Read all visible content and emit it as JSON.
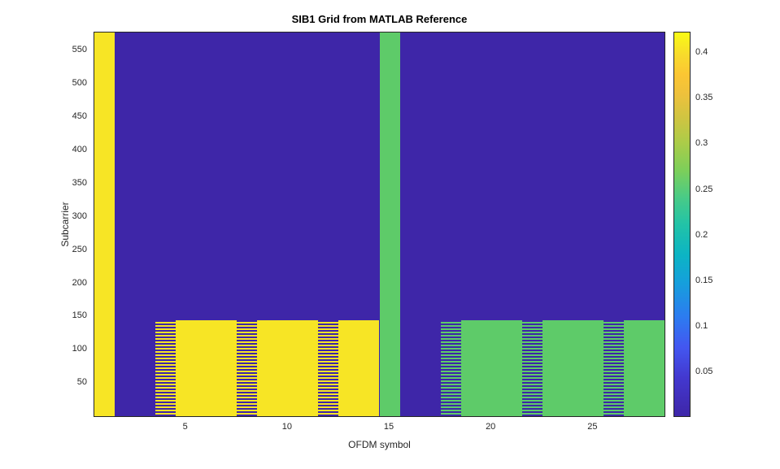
{
  "chart_data": {
    "type": "heatmap",
    "title": "SIB1 Grid from MATLAB Reference",
    "xlabel": "OFDM symbol",
    "ylabel": "Subcarrier",
    "colormap": "parula",
    "xlim": [
      0.5,
      28.5
    ],
    "ylim": [
      0.5,
      576.5
    ],
    "x_ticks": [
      5,
      10,
      15,
      20,
      25
    ],
    "y_ticks": [
      50,
      100,
      150,
      200,
      250,
      300,
      350,
      400,
      450,
      500,
      550
    ],
    "grid": false,
    "colors": {
      "background": "#3e26a8",
      "yellow": "#f7e525",
      "green": "#5ecb69"
    },
    "background_value": 0,
    "colorbar": {
      "vmin": 0,
      "vmax": 0.4225,
      "ticks": [
        0.05,
        0.1,
        0.15,
        0.2,
        0.25,
        0.3,
        0.35,
        0.4
      ],
      "position": "right",
      "gradient_stops": [
        {
          "pos": 0.0,
          "color": "#3e26a8"
        },
        {
          "pos": 0.1,
          "color": "#4338cf"
        },
        {
          "pos": 0.18,
          "color": "#4357f0"
        },
        {
          "pos": 0.26,
          "color": "#2c7cf0"
        },
        {
          "pos": 0.35,
          "color": "#15a0db"
        },
        {
          "pos": 0.42,
          "color": "#0cb4c4"
        },
        {
          "pos": 0.5,
          "color": "#22c3a7"
        },
        {
          "pos": 0.57,
          "color": "#49cb86"
        },
        {
          "pos": 0.64,
          "color": "#7ccf5a"
        },
        {
          "pos": 0.71,
          "color": "#aacc49"
        },
        {
          "pos": 0.78,
          "color": "#d1c441"
        },
        {
          "pos": 0.84,
          "color": "#eec13c"
        },
        {
          "pos": 0.89,
          "color": "#fbc633"
        },
        {
          "pos": 0.94,
          "color": "#f8da2c"
        },
        {
          "pos": 1.0,
          "color": "#f9fb15"
        }
      ]
    },
    "regions": [
      {
        "name": "yellow-column-symbol-1",
        "x0": 0.5,
        "x1": 1.5,
        "y0": 0.5,
        "y1": 576.5,
        "fill": "yellow",
        "pattern": "solid",
        "value": 0.43
      },
      {
        "name": "yellow-data-block-symbols-4-14",
        "x0": 3.5,
        "x1": 14.5,
        "y0": 0.5,
        "y1": 144.5,
        "fill": "yellow",
        "pattern": "solid",
        "value": 0.43
      },
      {
        "name": "dmrs-stripe-column-symbol-4",
        "x0": 3.5,
        "x1": 4.5,
        "y0": 0.5,
        "y1": 144.5,
        "fill": "yellow",
        "pattern": "stripes",
        "value": 0.43
      },
      {
        "name": "dmrs-stripe-column-symbol-8",
        "x0": 7.5,
        "x1": 8.5,
        "y0": 0.5,
        "y1": 144.5,
        "fill": "yellow",
        "pattern": "stripes",
        "value": 0.43
      },
      {
        "name": "dmrs-stripe-column-symbol-12",
        "x0": 11.5,
        "x1": 12.5,
        "y0": 0.5,
        "y1": 144.5,
        "fill": "yellow",
        "pattern": "stripes",
        "value": 0.43
      },
      {
        "name": "green-column-symbol-15",
        "x0": 14.5,
        "x1": 15.5,
        "y0": 0.5,
        "y1": 576.5,
        "fill": "green",
        "pattern": "solid",
        "value": 0.26
      },
      {
        "name": "green-data-block-symbols-18-28",
        "x0": 17.5,
        "x1": 28.5,
        "y0": 0.5,
        "y1": 144.5,
        "fill": "green",
        "pattern": "solid",
        "value": 0.26
      },
      {
        "name": "dmrs-stripe-column-symbol-18",
        "x0": 17.5,
        "x1": 18.5,
        "y0": 0.5,
        "y1": 144.5,
        "fill": "green",
        "pattern": "stripes",
        "value": 0.26
      },
      {
        "name": "dmrs-stripe-column-symbol-22",
        "x0": 21.5,
        "x1": 22.5,
        "y0": 0.5,
        "y1": 144.5,
        "fill": "green",
        "pattern": "stripes",
        "value": 0.26
      },
      {
        "name": "dmrs-stripe-column-symbol-26",
        "x0": 25.5,
        "x1": 26.5,
        "y0": 0.5,
        "y1": 144.5,
        "fill": "green",
        "pattern": "stripes",
        "value": 0.26
      }
    ]
  }
}
